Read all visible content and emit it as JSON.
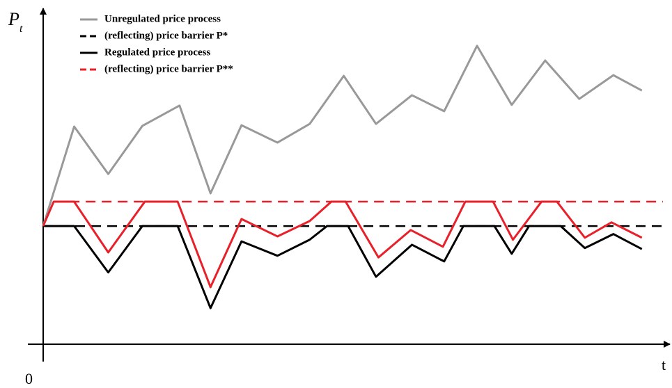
{
  "chart_data": {
    "type": "line",
    "xlabel": "t",
    "origin_label": "0",
    "ylabel": {
      "main": "P",
      "sub": "t"
    },
    "xlim": [
      0,
      100
    ],
    "ylim": [
      0,
      100
    ],
    "series": [
      {
        "name": "Unregulated price process",
        "color": "#999999",
        "dash": false,
        "x": [
          0,
          5,
          10.5,
          16,
          22,
          27,
          32,
          37.8,
          43,
          48.5,
          53.7,
          59.5,
          64.7,
          70,
          75.6,
          81,
          86.5,
          92,
          96.6
        ],
        "values": [
          35.4,
          65.2,
          51,
          65.4,
          71.5,
          45.2,
          65.6,
          60.4,
          66,
          80.4,
          66,
          74.6,
          69.8,
          89.4,
          71.7,
          85,
          73.5,
          80.6,
          76
        ]
      },
      {
        "name": "(reflecting) price barrier P*",
        "color": "#000000",
        "dash": true,
        "x": [
          0,
          100
        ],
        "values": [
          35.4,
          35.4
        ]
      },
      {
        "name": "Regulated price process",
        "color": "#000000",
        "dash": false,
        "x": [
          0,
          5,
          10.5,
          16,
          21.7,
          27,
          32,
          37.8,
          43,
          45.8,
          49.2,
          53.7,
          59.5,
          64.7,
          67.8,
          72.8,
          75.6,
          78.4,
          83.5,
          87.4,
          92,
          96.6
        ],
        "values": [
          35.4,
          35.4,
          21.5,
          35.4,
          35.4,
          10.8,
          30.8,
          26.5,
          31.3,
          35.4,
          35.4,
          20.2,
          29.8,
          24.8,
          35.4,
          35.4,
          27.1,
          35.4,
          35.4,
          28.8,
          33,
          28.5
        ]
      },
      {
        "name": "(reflecting) price barrier P**",
        "color": "#e8202a",
        "dash": true,
        "x": [
          1.7,
          100
        ],
        "values": [
          42.7,
          42.7
        ]
      },
      {
        "name": "Regulated price process (P**)",
        "color": "#e8202a",
        "dash": false,
        "legend": false,
        "x": [
          0,
          1.7,
          5,
          10.5,
          16.4,
          21.7,
          27,
          32,
          37.8,
          43,
          46.5,
          48.8,
          54.1,
          59.3,
          64.5,
          68.1,
          72.6,
          75.8,
          80.4,
          82.9,
          87.4,
          91.7,
          96.6
        ],
        "values": [
          35.4,
          42.7,
          42.7,
          27.5,
          42.7,
          42.7,
          17.1,
          37.5,
          32.3,
          36.9,
          42.7,
          42.7,
          26,
          34.2,
          29.2,
          42.7,
          42.7,
          31.3,
          42.7,
          42.7,
          31.9,
          36.5,
          31.9
        ]
      }
    ]
  }
}
